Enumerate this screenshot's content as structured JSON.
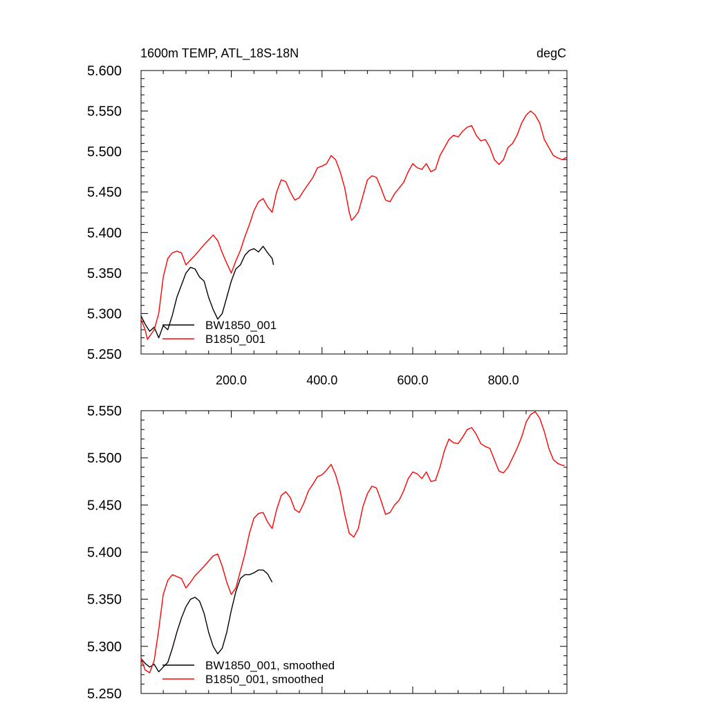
{
  "figure": {
    "title_left": "1600m TEMP, ATL_18S-18N",
    "title_right": "degC"
  },
  "chart_data": [
    {
      "type": "line",
      "title": "1600m TEMP, ATL_18S-18N",
      "units": "degC",
      "xlim": [
        1,
        940
      ],
      "ylim": [
        5.25,
        5.6
      ],
      "x_ticks": [
        200,
        400,
        600,
        800
      ],
      "x_tick_labels": [
        "200.0",
        "400.0",
        "600.0",
        "800.0"
      ],
      "y_ticks": [
        5.25,
        5.3,
        5.35,
        5.4,
        5.45,
        5.5,
        5.55,
        5.6
      ],
      "y_tick_labels": [
        "5.250",
        "5.300",
        "5.350",
        "5.400",
        "5.450",
        "5.500",
        "5.550",
        "5.600"
      ],
      "legend_position": "bottom-left",
      "grid": false,
      "series": [
        {
          "name": "BW1850_001",
          "color": "#000000",
          "x": [
            1,
            10,
            20,
            30,
            40,
            50,
            60,
            70,
            80,
            90,
            100,
            110,
            120,
            130,
            140,
            150,
            160,
            170,
            180,
            190,
            200,
            210,
            220,
            230,
            240,
            250,
            260,
            270,
            280,
            290,
            293
          ],
          "y": [
            5.297,
            5.287,
            5.278,
            5.283,
            5.27,
            5.285,
            5.28,
            5.298,
            5.32,
            5.335,
            5.35,
            5.357,
            5.355,
            5.345,
            5.34,
            5.32,
            5.305,
            5.293,
            5.3,
            5.32,
            5.34,
            5.355,
            5.36,
            5.372,
            5.378,
            5.38,
            5.376,
            5.383,
            5.375,
            5.368,
            5.36
          ]
        },
        {
          "name": "B1850_001",
          "color": "#ff0000",
          "x": [
            1,
            10,
            15,
            20,
            30,
            40,
            50,
            60,
            70,
            80,
            90,
            100,
            120,
            140,
            160,
            170,
            180,
            190,
            200,
            210,
            220,
            230,
            240,
            250,
            260,
            270,
            280,
            290,
            300,
            310,
            320,
            330,
            340,
            350,
            360,
            370,
            380,
            390,
            400,
            410,
            420,
            430,
            440,
            450,
            460,
            465,
            470,
            480,
            490,
            500,
            510,
            520,
            530,
            540,
            550,
            560,
            570,
            580,
            590,
            600,
            610,
            620,
            630,
            640,
            650,
            660,
            670,
            680,
            690,
            700,
            710,
            720,
            730,
            740,
            750,
            760,
            770,
            780,
            790,
            800,
            810,
            820,
            830,
            840,
            850,
            860,
            870,
            880,
            890,
            900,
            910,
            920,
            930,
            940
          ],
          "y": [
            5.293,
            5.28,
            5.268,
            5.272,
            5.28,
            5.3,
            5.345,
            5.368,
            5.375,
            5.377,
            5.375,
            5.36,
            5.372,
            5.385,
            5.397,
            5.39,
            5.375,
            5.362,
            5.35,
            5.365,
            5.378,
            5.395,
            5.41,
            5.427,
            5.438,
            5.442,
            5.432,
            5.425,
            5.45,
            5.465,
            5.463,
            5.45,
            5.44,
            5.443,
            5.452,
            5.46,
            5.468,
            5.48,
            5.482,
            5.485,
            5.495,
            5.49,
            5.475,
            5.455,
            5.425,
            5.415,
            5.418,
            5.425,
            5.445,
            5.465,
            5.47,
            5.468,
            5.455,
            5.44,
            5.438,
            5.448,
            5.455,
            5.462,
            5.475,
            5.485,
            5.48,
            5.478,
            5.485,
            5.475,
            5.478,
            5.495,
            5.505,
            5.515,
            5.52,
            5.518,
            5.525,
            5.53,
            5.532,
            5.52,
            5.513,
            5.515,
            5.505,
            5.49,
            5.484,
            5.49,
            5.505,
            5.51,
            5.52,
            5.535,
            5.545,
            5.55,
            5.545,
            5.535,
            5.515,
            5.505,
            5.495,
            5.492,
            5.49,
            5.493
          ]
        }
      ]
    },
    {
      "type": "line",
      "xlim": [
        1,
        940
      ],
      "ylim": [
        5.25,
        5.55
      ],
      "x_ticks": [
        200,
        400,
        600,
        800
      ],
      "y_ticks": [
        5.25,
        5.3,
        5.35,
        5.4,
        5.45,
        5.5,
        5.55
      ],
      "y_tick_labels": [
        "5.250",
        "5.300",
        "5.350",
        "5.400",
        "5.450",
        "5.500",
        "5.550"
      ],
      "legend_position": "bottom-left",
      "grid": false,
      "series": [
        {
          "name": "BW1850_001, smoothed",
          "color": "#000000",
          "x": [
            1,
            10,
            20,
            30,
            40,
            50,
            60,
            70,
            80,
            90,
            100,
            110,
            120,
            130,
            140,
            150,
            160,
            170,
            180,
            190,
            200,
            210,
            220,
            230,
            240,
            250,
            260,
            270,
            280,
            290
          ],
          "y": [
            5.287,
            5.282,
            5.278,
            5.281,
            5.273,
            5.278,
            5.283,
            5.298,
            5.315,
            5.33,
            5.342,
            5.35,
            5.352,
            5.348,
            5.335,
            5.315,
            5.3,
            5.292,
            5.298,
            5.315,
            5.338,
            5.358,
            5.372,
            5.376,
            5.376,
            5.378,
            5.381,
            5.381,
            5.377,
            5.368
          ]
        },
        {
          "name": "B1850_001, smoothed",
          "color": "#ff0000",
          "x": [
            1,
            10,
            20,
            30,
            40,
            50,
            60,
            70,
            80,
            90,
            100,
            110,
            120,
            140,
            160,
            170,
            180,
            190,
            200,
            210,
            220,
            230,
            240,
            250,
            260,
            270,
            280,
            290,
            300,
            310,
            320,
            330,
            340,
            350,
            360,
            370,
            380,
            390,
            400,
            410,
            420,
            430,
            440,
            450,
            460,
            470,
            480,
            490,
            500,
            510,
            520,
            530,
            540,
            550,
            560,
            570,
            580,
            590,
            600,
            610,
            620,
            630,
            640,
            650,
            660,
            670,
            680,
            690,
            700,
            710,
            720,
            730,
            740,
            750,
            760,
            770,
            780,
            790,
            800,
            810,
            820,
            830,
            840,
            850,
            860,
            870,
            880,
            890,
            900,
            910,
            920,
            930,
            935
          ],
          "y": [
            5.287,
            5.275,
            5.272,
            5.285,
            5.318,
            5.355,
            5.37,
            5.376,
            5.374,
            5.372,
            5.362,
            5.368,
            5.375,
            5.385,
            5.396,
            5.398,
            5.385,
            5.368,
            5.355,
            5.362,
            5.38,
            5.398,
            5.42,
            5.436,
            5.441,
            5.442,
            5.432,
            5.425,
            5.445,
            5.46,
            5.464,
            5.458,
            5.445,
            5.442,
            5.452,
            5.465,
            5.472,
            5.48,
            5.482,
            5.487,
            5.493,
            5.482,
            5.465,
            5.44,
            5.42,
            5.416,
            5.425,
            5.448,
            5.462,
            5.47,
            5.468,
            5.455,
            5.44,
            5.442,
            5.45,
            5.455,
            5.465,
            5.478,
            5.485,
            5.483,
            5.478,
            5.485,
            5.475,
            5.476,
            5.49,
            5.508,
            5.52,
            5.516,
            5.515,
            5.522,
            5.53,
            5.532,
            5.525,
            5.515,
            5.512,
            5.51,
            5.498,
            5.486,
            5.484,
            5.49,
            5.5,
            5.51,
            5.522,
            5.538,
            5.546,
            5.549,
            5.542,
            5.528,
            5.51,
            5.498,
            5.494,
            5.492,
            5.492
          ]
        }
      ]
    }
  ]
}
